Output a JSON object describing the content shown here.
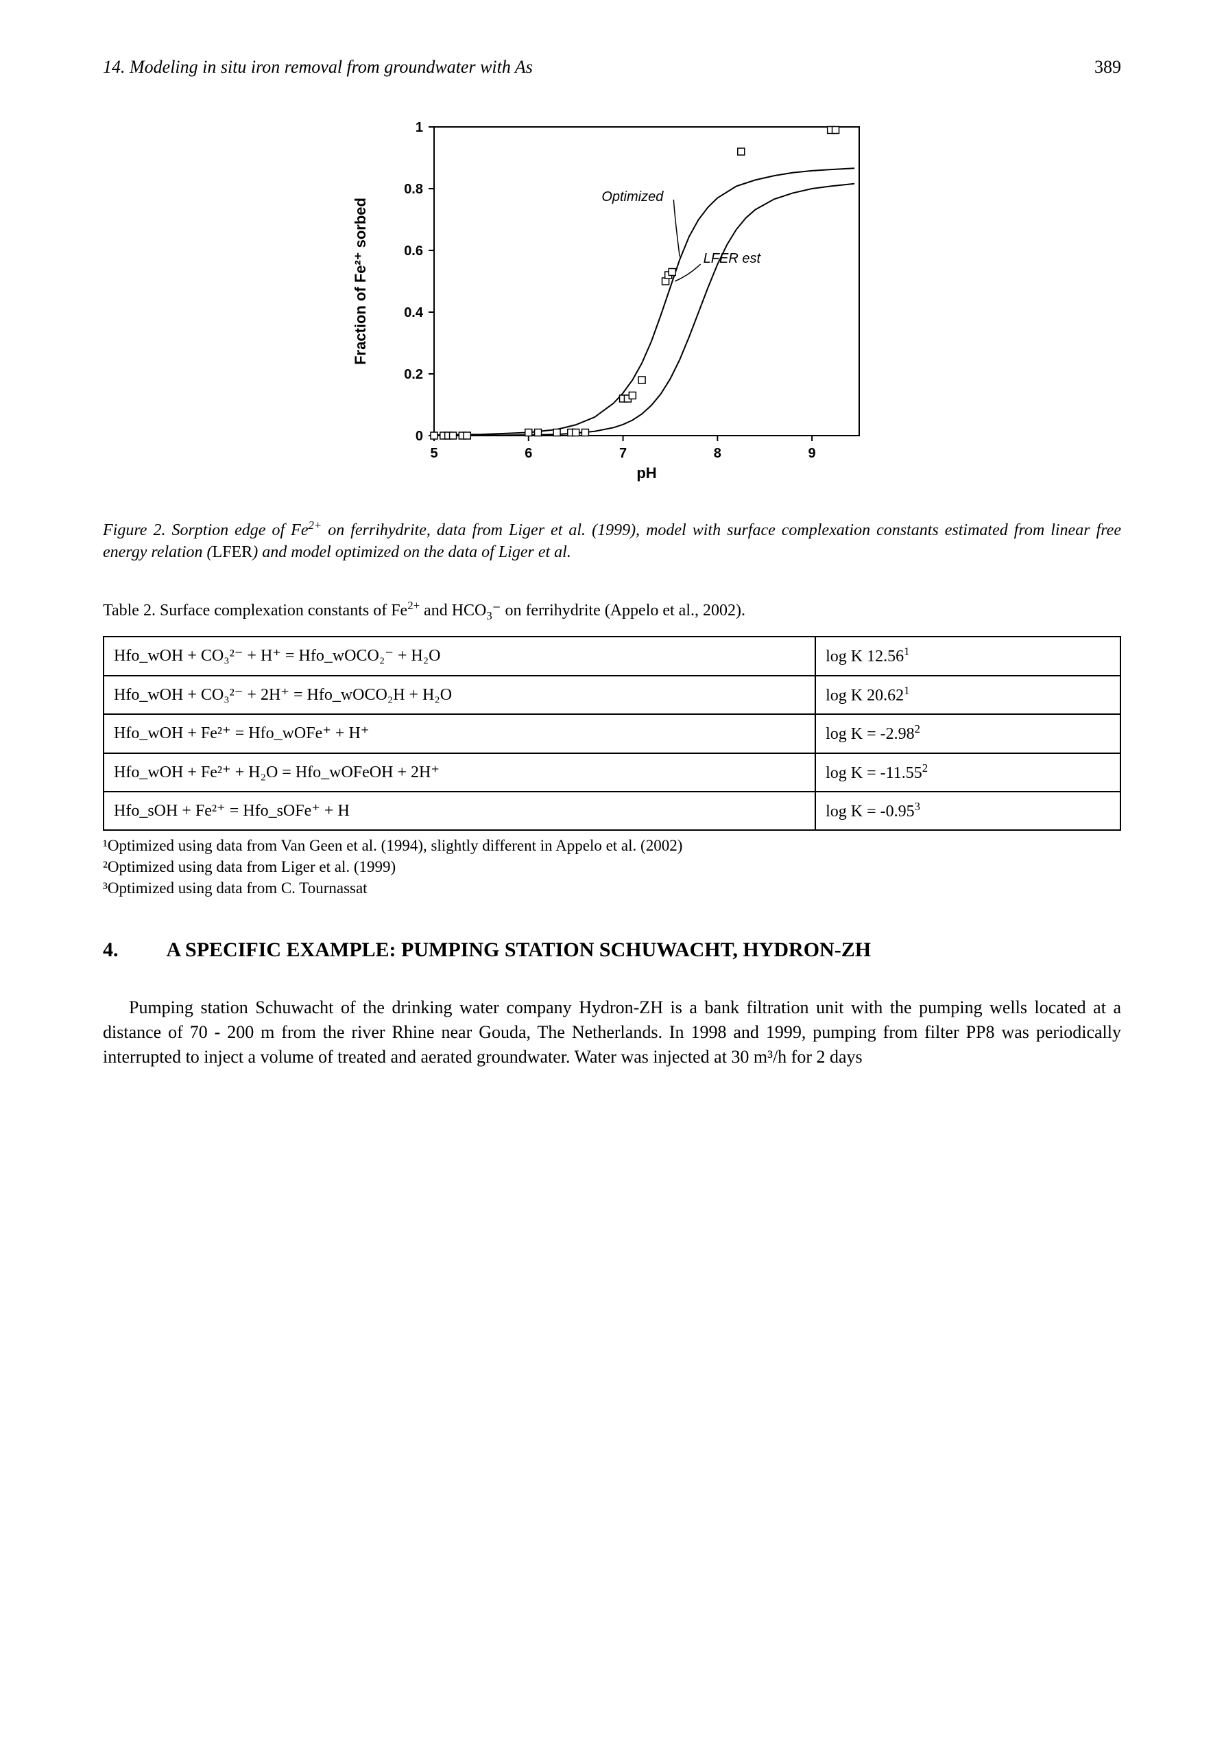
{
  "header": {
    "running_title": "14. Modeling in situ iron removal from groundwater with As",
    "page_number": "389"
  },
  "figure": {
    "type": "scatter+line",
    "xlabel": "pH",
    "ylabel": "Fraction of Fe²⁺ sorbed",
    "xlim": [
      5,
      9.5
    ],
    "ylim": [
      0,
      1
    ],
    "xticks": [
      5,
      6,
      7,
      8,
      9
    ],
    "yticks": [
      0,
      0.2,
      0.4,
      0.6,
      0.8,
      1
    ],
    "tick_fontsize": 20,
    "label_fontsize": 22,
    "annotation_fontsize": 20,
    "background_color": "#ffffff",
    "axis_color": "#000000",
    "marker": {
      "style": "square-open",
      "size": 10,
      "color": "#000000"
    },
    "data_points": [
      {
        "x": 5.0,
        "y": 0.0
      },
      {
        "x": 5.1,
        "y": 0.0
      },
      {
        "x": 5.15,
        "y": 0.0
      },
      {
        "x": 5.2,
        "y": 0.0
      },
      {
        "x": 5.3,
        "y": 0.0
      },
      {
        "x": 5.35,
        "y": 0.0
      },
      {
        "x": 6.0,
        "y": 0.01
      },
      {
        "x": 6.1,
        "y": 0.01
      },
      {
        "x": 6.3,
        "y": 0.01
      },
      {
        "x": 6.45,
        "y": 0.01
      },
      {
        "x": 6.5,
        "y": 0.01
      },
      {
        "x": 6.6,
        "y": 0.01
      },
      {
        "x": 7.0,
        "y": 0.12
      },
      {
        "x": 7.05,
        "y": 0.12
      },
      {
        "x": 7.1,
        "y": 0.13
      },
      {
        "x": 7.2,
        "y": 0.18
      },
      {
        "x": 7.45,
        "y": 0.5
      },
      {
        "x": 7.48,
        "y": 0.52
      },
      {
        "x": 7.52,
        "y": 0.53
      },
      {
        "x": 8.25,
        "y": 0.92
      },
      {
        "x": 9.2,
        "y": 0.99
      },
      {
        "x": 9.25,
        "y": 0.99
      }
    ],
    "curves": {
      "optimized": {
        "label": "Optimized",
        "label_pos": {
          "x": 7.1,
          "y": 0.76
        },
        "color": "#000000",
        "line_width": 2,
        "points": [
          {
            "x": 5.0,
            "y": 0.002
          },
          {
            "x": 5.5,
            "y": 0.004
          },
          {
            "x": 6.0,
            "y": 0.01
          },
          {
            "x": 6.3,
            "y": 0.02
          },
          {
            "x": 6.5,
            "y": 0.035
          },
          {
            "x": 6.7,
            "y": 0.06
          },
          {
            "x": 6.9,
            "y": 0.105
          },
          {
            "x": 7.0,
            "y": 0.138
          },
          {
            "x": 7.1,
            "y": 0.18
          },
          {
            "x": 7.2,
            "y": 0.235
          },
          {
            "x": 7.3,
            "y": 0.305
          },
          {
            "x": 7.4,
            "y": 0.39
          },
          {
            "x": 7.5,
            "y": 0.48
          },
          {
            "x": 7.6,
            "y": 0.57
          },
          {
            "x": 7.7,
            "y": 0.645
          },
          {
            "x": 7.8,
            "y": 0.7
          },
          {
            "x": 7.9,
            "y": 0.74
          },
          {
            "x": 8.0,
            "y": 0.77
          },
          {
            "x": 8.2,
            "y": 0.808
          },
          {
            "x": 8.4,
            "y": 0.828
          },
          {
            "x": 8.6,
            "y": 0.842
          },
          {
            "x": 8.8,
            "y": 0.852
          },
          {
            "x": 9.0,
            "y": 0.858
          },
          {
            "x": 9.2,
            "y": 0.862
          },
          {
            "x": 9.45,
            "y": 0.866
          }
        ]
      },
      "lfer": {
        "label": "LFER est",
        "label_pos": {
          "x": 7.85,
          "y": 0.56
        },
        "color": "#000000",
        "line_width": 2,
        "points": [
          {
            "x": 5.0,
            "y": 0.0
          },
          {
            "x": 5.5,
            "y": 0.001
          },
          {
            "x": 6.0,
            "y": 0.002
          },
          {
            "x": 6.3,
            "y": 0.004
          },
          {
            "x": 6.5,
            "y": 0.008
          },
          {
            "x": 6.7,
            "y": 0.014
          },
          {
            "x": 6.9,
            "y": 0.026
          },
          {
            "x": 7.0,
            "y": 0.036
          },
          {
            "x": 7.1,
            "y": 0.05
          },
          {
            "x": 7.2,
            "y": 0.07
          },
          {
            "x": 7.3,
            "y": 0.098
          },
          {
            "x": 7.4,
            "y": 0.135
          },
          {
            "x": 7.5,
            "y": 0.184
          },
          {
            "x": 7.6,
            "y": 0.246
          },
          {
            "x": 7.7,
            "y": 0.32
          },
          {
            "x": 7.8,
            "y": 0.4
          },
          {
            "x": 7.9,
            "y": 0.48
          },
          {
            "x": 8.0,
            "y": 0.555
          },
          {
            "x": 8.1,
            "y": 0.618
          },
          {
            "x": 8.2,
            "y": 0.668
          },
          {
            "x": 8.3,
            "y": 0.705
          },
          {
            "x": 8.4,
            "y": 0.732
          },
          {
            "x": 8.6,
            "y": 0.766
          },
          {
            "x": 8.8,
            "y": 0.786
          },
          {
            "x": 9.0,
            "y": 0.8
          },
          {
            "x": 9.2,
            "y": 0.808
          },
          {
            "x": 9.45,
            "y": 0.816
          }
        ]
      }
    }
  },
  "figure_caption": {
    "text_parts": [
      "Figure 2. Sorption edge of Fe",
      "2+",
      " on ferrihydrite, data from Liger et al. (1999), model with surface complexation constants estimated from linear free energy relation (",
      "LFER",
      ") and model optimized on the data of Liger et al."
    ]
  },
  "table": {
    "title_parts": [
      "Table 2. Surface complexation constants of Fe",
      "2+",
      " and HCO",
      "3",
      "⁻",
      " on ferrihydrite (Appelo et al., 2002)."
    ],
    "rows": [
      {
        "eq": "Hfo_wOH + CO₃²⁻ + H⁺ = Hfo_wOCO₂⁻ + H₂O",
        "logk_html": "log K 12.56<sup>1</sup>"
      },
      {
        "eq": "Hfo_wOH + CO₃²⁻ + 2H⁺ = Hfo_wOCO₂H + H₂O",
        "logk_html": "log K 20.62<sup>1</sup>"
      },
      {
        "eq": "Hfo_wOH + Fe²⁺ = Hfo_wOFe⁺ + H⁺",
        "logk_html": "log K = -2.98<sup>2</sup>"
      },
      {
        "eq": "Hfo_wOH + Fe²⁺ + H₂O = Hfo_wOFeOH + 2H⁺",
        "logk_html": "log K = -11.55<sup>2</sup>"
      },
      {
        "eq": "Hfo_sOH + Fe²⁺ = Hfo_sOFe⁺ + H",
        "logk_html": "log K = -0.95<sup>3</sup>"
      }
    ],
    "footnotes": [
      "¹Optimized using data from Van Geen et al. (1994), slightly different in Appelo et al. (2002)",
      "²Optimized using data from Liger et al. (1999)",
      "³Optimized using data from C. Tournassat"
    ]
  },
  "section": {
    "number": "4.",
    "title": "A SPECIFIC EXAMPLE: PUMPING STATION SCHUWACHT, HYDRON-ZH"
  },
  "paragraph": "Pumping station Schuwacht of the drinking water company Hydron-ZH is a bank filtration unit with the pumping wells located at a distance of 70 - 200 m from the river Rhine near Gouda, The Netherlands. In 1998 and 1999, pumping from filter PP8 was periodically interrupted to inject a volume of treated and aerated groundwater. Water was injected at 30 m³/h for 2 days"
}
